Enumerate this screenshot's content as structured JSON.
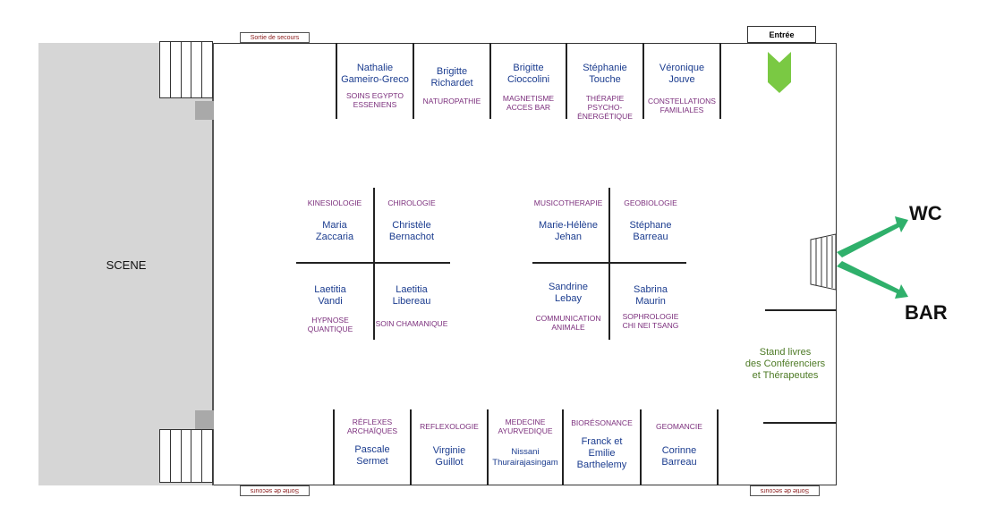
{
  "stage": {
    "label": "SCENE"
  },
  "exits": {
    "top": "Sortie de secours",
    "bottom_left": "Sortie de secours",
    "bottom_right": "Sortie de secours"
  },
  "entry": "Entrée",
  "wc": "WC",
  "bar": "BAR",
  "books_stand": [
    "Stand livres",
    "des Conférenciers",
    "et Thérapeutes"
  ],
  "colors": {
    "name": "#1b3c8f",
    "specialty": "#7b2e7c",
    "arrow": "#7ac943",
    "wc_bar_arrow": "#2fb06b",
    "books": "#4d7a25",
    "stage": "#d6d6d6"
  },
  "top_row": [
    {
      "name": [
        "Nathalie",
        "Gameiro-Greco"
      ],
      "spec": [
        "SOINS EGYPTO",
        "ESSENIENS"
      ]
    },
    {
      "name": [
        "Brigitte",
        "Richardet"
      ],
      "spec": [
        "NATUROPATHIE"
      ]
    },
    {
      "name": [
        "Brigitte",
        "Cioccolini"
      ],
      "spec": [
        "MAGNETISME",
        "ACCES BAR"
      ]
    },
    {
      "name": [
        "Stéphanie",
        "Touche"
      ],
      "spec": [
        "THÉRAPIE",
        "PSYCHO-",
        "ÉNERGÉTIQUE"
      ]
    },
    {
      "name": [
        "Véronique",
        "Jouve"
      ],
      "spec": [
        "CONSTELLATIONS",
        "FAMILIALES"
      ]
    }
  ],
  "left_cross": [
    {
      "name": [
        "Maria",
        "Zaccaria"
      ],
      "spec": [
        "KINESIOLOGIE"
      ]
    },
    {
      "name": [
        "Christèle",
        "Bernachot"
      ],
      "spec": [
        "CHIROLOGIE"
      ]
    },
    {
      "name": [
        "Laetitia",
        "Vandi"
      ],
      "spec": [
        "HYPNOSE",
        "QUANTIQUE"
      ]
    },
    {
      "name": [
        "Laetitia",
        "Libereau"
      ],
      "spec": [
        "SOIN CHAMANIQUE"
      ]
    }
  ],
  "right_cross": [
    {
      "name": [
        "Marie-Hélène",
        "Jehan"
      ],
      "spec": [
        "MUSICOTHERAPIE"
      ]
    },
    {
      "name": [
        "Stéphane",
        "Barreau"
      ],
      "spec": [
        "GEOBIOLOGIE"
      ]
    },
    {
      "name": [
        "Sandrine",
        "Lebay"
      ],
      "spec": [
        "COMMUNICATION",
        "ANIMALE"
      ]
    },
    {
      "name": [
        "Sabrina",
        "Maurin"
      ],
      "spec": [
        "SOPHROLOGIE",
        "CHI NEI TSANG"
      ]
    }
  ],
  "bottom_row": [
    {
      "name": [
        "Pascale",
        "Sermet"
      ],
      "spec": [
        "RÉFLEXES",
        "ARCHAÏQUES"
      ]
    },
    {
      "name": [
        "Virginie",
        "Guillot"
      ],
      "spec": [
        "REFLEXOLOGIE"
      ]
    },
    {
      "name": [
        "Nissani",
        "Thurairajasingam"
      ],
      "spec": [
        "MEDECINE",
        "AYURVEDIQUE"
      ]
    },
    {
      "name": [
        "Franck et",
        "Emilie",
        "Barthelemy"
      ],
      "spec": [
        "BIORÉSONANCE"
      ]
    },
    {
      "name": [
        "Corinne",
        "Barreau"
      ],
      "spec": [
        "GEOMANCIE"
      ]
    }
  ]
}
